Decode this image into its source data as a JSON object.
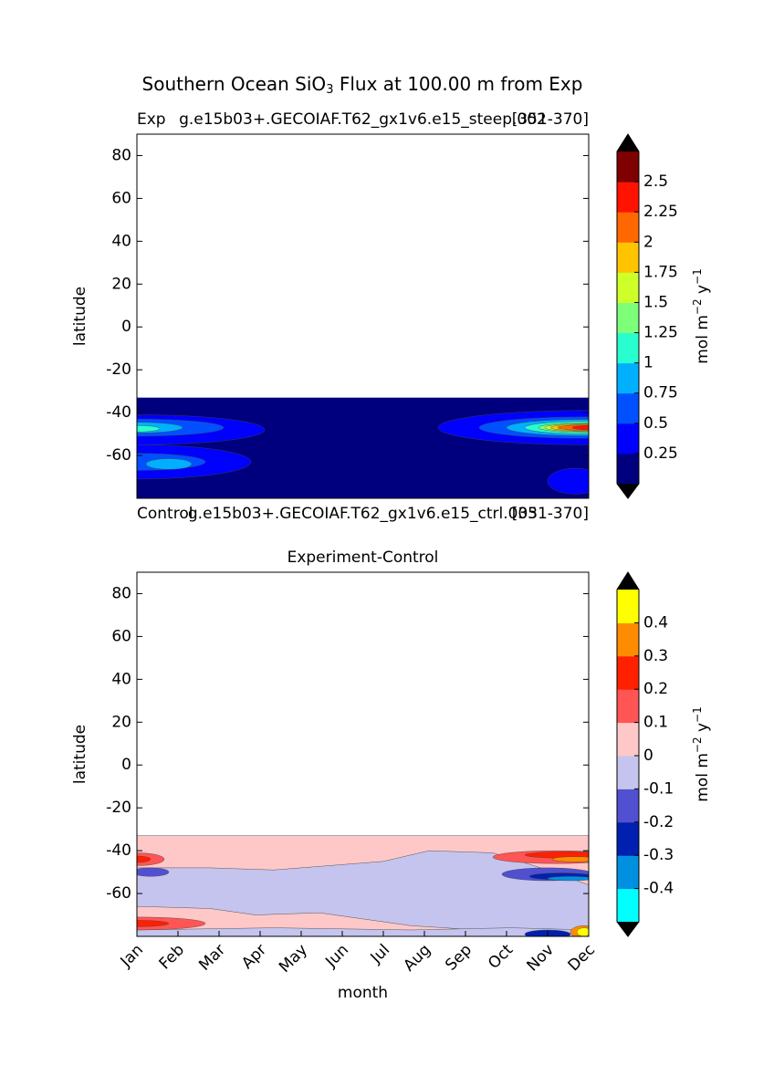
{
  "title": {
    "before": "Southern Ocean SiO",
    "subscript": "3",
    "after": " Flux at 100.00 m from Exp"
  },
  "chart_data": [
    {
      "type": "contour",
      "left_title": "Exp",
      "title": "g.e15b03+.GECOIAF.T62_gx1v6.e15_steep.002",
      "right_title": "[351-370]",
      "ylabel": "latitude",
      "ylim": [
        -80,
        90
      ],
      "yticks": [
        -60,
        -40,
        -20,
        0,
        20,
        40,
        60,
        80
      ],
      "lower_left_title": "Control",
      "lower_title": "g.e15b03+.GECOIAF.T62_gx1v6.e15_ctrl.003",
      "lower_right_title": "[351-370]",
      "colorbar": {
        "levels": [
          0.25,
          0.5,
          0.75,
          1,
          1.25,
          1.5,
          1.75,
          2,
          2.25,
          2.5
        ],
        "colors": [
          "#00007f",
          "#0000ff",
          "#0050ff",
          "#00b0ff",
          "#29ffce",
          "#7dff7a",
          "#ceff29",
          "#ffc400",
          "#ff6800",
          "#ff1300",
          "#7f0000"
        ],
        "label": {
          "base": "mol m",
          "exp1": "−2",
          "mid": " y",
          "exp2": "−1"
        }
      }
    },
    {
      "type": "contour",
      "title": "Experiment-Control",
      "ylabel": "latitude",
      "xlabel": "month",
      "ylim": [
        -80,
        90
      ],
      "yticks": [
        -60,
        -40,
        -20,
        0,
        20,
        40,
        60,
        80
      ],
      "categories": [
        "Jan",
        "Feb",
        "Mar",
        "Apr",
        "May",
        "Jun",
        "Jul",
        "Aug",
        "Sep",
        "Oct",
        "Nov",
        "Dec"
      ],
      "colorbar": {
        "levels": [
          -0.4,
          -0.3,
          -0.2,
          -0.1,
          0,
          0.1,
          0.2,
          0.3,
          0.4
        ],
        "colors": [
          "#00ffff",
          "#0090e0",
          "#0020b0",
          "#5050d0",
          "#c4c4ee",
          "#ffc8c8",
          "#ff5555",
          "#ff2000",
          "#ff8c00",
          "#ffff00"
        ],
        "label": {
          "base": "mol m",
          "exp1": "−2",
          "mid": " y",
          "exp2": "−1"
        }
      }
    }
  ]
}
